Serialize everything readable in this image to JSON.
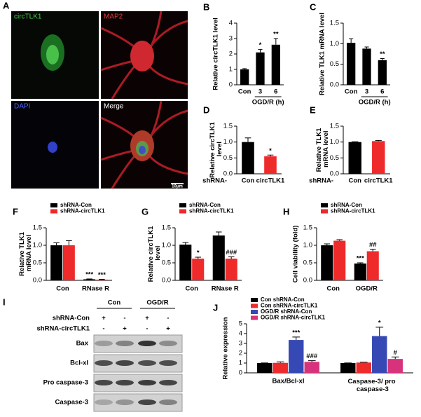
{
  "microscopy": {
    "panel": "A",
    "channels": [
      "circTLK1",
      "MAP2",
      "DAPI",
      "Merge"
    ],
    "scale_bar": "10μm"
  },
  "western_blot": {
    "panel": "I",
    "groups": [
      "Con",
      "OGD/R"
    ],
    "conditions": [
      {
        "name": "shRNA-Con",
        "signs": [
          "+",
          "-",
          "+",
          "-"
        ]
      },
      {
        "name": "shRNA-circTLK1",
        "signs": [
          "-",
          "+",
          "-",
          "+"
        ]
      }
    ],
    "bands": [
      "Bax",
      "Bcl-xl",
      "Pro caspase-3",
      "Caspase-3"
    ]
  },
  "chart_data": [
    {
      "type": "bar",
      "panel": "B",
      "ylabel": "Relative circTLK1 level",
      "categories": [
        "Con",
        "3",
        "6"
      ],
      "xlabel": "OGD/R (h)",
      "values": [
        1.0,
        2.1,
        2.6
      ],
      "errors": [
        0.05,
        0.2,
        0.4
      ],
      "annotations": [
        null,
        "*",
        "**"
      ],
      "colors": [
        "#000000",
        "#000000",
        "#000000"
      ],
      "ylim": [
        0,
        4
      ],
      "yticks": [
        0,
        1,
        2,
        3,
        4
      ]
    },
    {
      "type": "bar",
      "panel": "C",
      "ylabel": "Relative TLK1 mRNA level",
      "categories": [
        "Con",
        "3",
        "6"
      ],
      "xlabel": "OGD/R (h)",
      "values": [
        1.02,
        0.88,
        0.6
      ],
      "errors": [
        0.1,
        0.04,
        0.04
      ],
      "annotations": [
        null,
        null,
        "**"
      ],
      "colors": [
        "#000000",
        "#000000",
        "#000000"
      ],
      "ylim": [
        0,
        1.5
      ],
      "yticks": [
        {
          "value": 0,
          "label": "0.0"
        },
        {
          "value": 0.5,
          "label": "0.5"
        },
        {
          "value": 1,
          "label": "1.0"
        },
        {
          "value": 1.5,
          "label": "1.5"
        }
      ]
    },
    {
      "type": "bar",
      "panel": "D",
      "ylabel": "Relative circTLK1 level",
      "prefix": "shRNA-",
      "categories": [
        "Con",
        "circTLK1"
      ],
      "values": [
        1.0,
        0.55
      ],
      "errors": [
        0.13,
        0.04
      ],
      "annotations": [
        null,
        "*"
      ],
      "colors": [
        "#000000",
        "#ee2a2a"
      ],
      "ylim": [
        0,
        1.5
      ],
      "yticks": [
        {
          "value": 0,
          "label": "0.0"
        },
        {
          "value": 0.5,
          "label": "0.5"
        },
        {
          "value": 1,
          "label": "1.0"
        },
        {
          "value": 1.5,
          "label": "1.5"
        }
      ]
    },
    {
      "type": "bar",
      "panel": "E",
      "ylabel": "Relative TLK1 mRNA level",
      "prefix": "shRNA-",
      "categories": [
        "Con",
        "circTLK1"
      ],
      "values": [
        1.0,
        1.03
      ],
      "errors": [
        0.01,
        0.02
      ],
      "annotations": [
        null,
        null
      ],
      "colors": [
        "#000000",
        "#ee2a2a"
      ],
      "ylim": [
        0,
        1.5
      ],
      "yticks": [
        {
          "value": 0,
          "label": "0.0"
        },
        {
          "value": 0.5,
          "label": "0.5"
        },
        {
          "value": 1,
          "label": "1.0"
        },
        {
          "value": 1.5,
          "label": "1.5"
        }
      ]
    },
    {
      "type": "grouped_bar",
      "panel": "F",
      "ylabel": "Relative TLK1 mRNA level",
      "categories": [
        "Con",
        "RNase R"
      ],
      "series": [
        {
          "name": "shRNA-Con",
          "color": "#000000",
          "values": [
            1.0,
            0.03
          ],
          "errors": [
            0.07,
            0.01
          ],
          "annotations": [
            null,
            "***"
          ]
        },
        {
          "name": "shRNA-circTLK1",
          "color": "#ee2a2a",
          "values": [
            1.0,
            0.02
          ],
          "errors": [
            0.13,
            0.01
          ],
          "annotations": [
            null,
            "***"
          ]
        }
      ],
      "ylim": [
        0,
        1.5
      ],
      "yticks": [
        {
          "value": 0,
          "label": "0.0"
        },
        {
          "value": 0.5,
          "label": "0.5"
        },
        {
          "value": 1,
          "label": "1.0"
        },
        {
          "value": 1.5,
          "label": "1.5"
        }
      ]
    },
    {
      "type": "grouped_bar",
      "panel": "G",
      "ylabel": "Relative circTLK1 level",
      "categories": [
        "Con",
        "RNase R"
      ],
      "series": [
        {
          "name": "shRNA-Con",
          "color": "#000000",
          "values": [
            1.02,
            1.28
          ],
          "errors": [
            0.06,
            0.1
          ],
          "annotations": [
            null,
            null
          ]
        },
        {
          "name": "shRNA-circTLK1",
          "color": "#ee2a2a",
          "values": [
            0.62,
            0.62
          ],
          "errors": [
            0.04,
            0.05
          ],
          "annotations": [
            "*",
            "###"
          ]
        }
      ],
      "ylim": [
        0,
        1.5
      ],
      "yticks": [
        {
          "value": 0,
          "label": "0.0"
        },
        {
          "value": 0.5,
          "label": "0.5"
        },
        {
          "value": 1,
          "label": "1.0"
        },
        {
          "value": 1.5,
          "label": "1.5"
        }
      ]
    },
    {
      "type": "grouped_bar",
      "panel": "H",
      "ylabel": "Cell viability (fold)",
      "categories": [
        "Con",
        "OGD/R"
      ],
      "series": [
        {
          "name": "shRNA-Con",
          "color": "#000000",
          "values": [
            1.0,
            0.48
          ],
          "errors": [
            0.04,
            0.02
          ],
          "annotations": [
            null,
            "***"
          ]
        },
        {
          "name": "shRNA-circTLK1",
          "color": "#ee2a2a",
          "values": [
            1.13,
            0.83
          ],
          "errors": [
            0.03,
            0.06
          ],
          "annotations": [
            null,
            "##"
          ]
        }
      ],
      "ylim": [
        0,
        1.5
      ],
      "yticks": [
        {
          "value": 0,
          "label": "0.0"
        },
        {
          "value": 0.5,
          "label": "0.5"
        },
        {
          "value": 1,
          "label": "1.0"
        },
        {
          "value": 1.5,
          "label": "1.5"
        }
      ]
    },
    {
      "type": "grouped_bar",
      "panel": "J",
      "ylabel": "Relative expression",
      "categories": [
        "Bax/Bcl-xl",
        "Caspase-3/ pro caspase-3"
      ],
      "series": [
        {
          "name": "Con shRNA-Con",
          "color": "#000000",
          "values": [
            1.0,
            1.0
          ],
          "errors": [
            0.01,
            0.01
          ],
          "annotations": [
            null,
            null
          ]
        },
        {
          "name": "Con shRNA-circTLK1",
          "color": "#ee2a2a",
          "values": [
            1.02,
            1.05
          ],
          "errors": [
            0.1,
            0.03
          ],
          "annotations": [
            null,
            null
          ]
        },
        {
          "name": "OGD/R shRNA-Con",
          "color": "#3648b4",
          "values": [
            3.35,
            3.75
          ],
          "errors": [
            0.3,
            0.9
          ],
          "annotations": [
            "***",
            "*"
          ]
        },
        {
          "name": "OGD/R shRNA-circTLK1",
          "color": "#d6337c",
          "values": [
            1.12,
            1.42
          ],
          "errors": [
            0.12,
            0.2
          ],
          "annotations": [
            "###",
            "#"
          ]
        }
      ],
      "ylim": [
        0,
        5
      ],
      "yticks": [
        0,
        1,
        2,
        3,
        4,
        5
      ]
    }
  ]
}
